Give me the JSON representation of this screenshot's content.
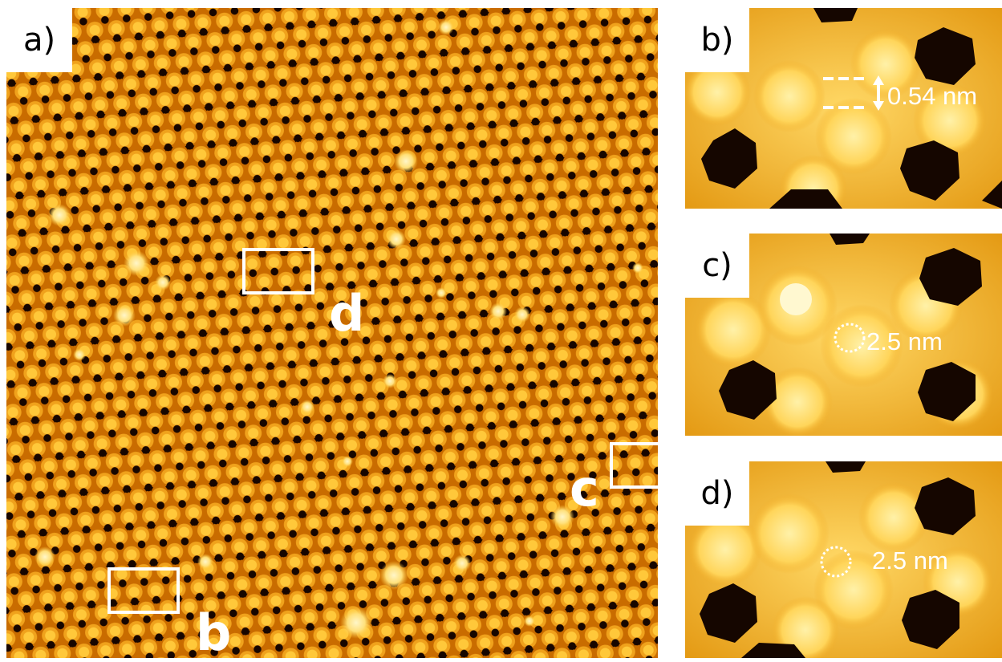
{
  "figure": {
    "panels": [
      {
        "id": "a",
        "label": "a)"
      },
      {
        "id": "b",
        "label": "b)",
        "measurement": "0.54 nm"
      },
      {
        "id": "c",
        "label": "c)",
        "measurement": "2.5 nm"
      },
      {
        "id": "d",
        "label": "d)",
        "measurement": "2.5 nm"
      }
    ],
    "inset_markers": {
      "b": "b",
      "c": "c",
      "d": "d"
    },
    "colors": {
      "background": "#c96c00",
      "bright": "#ffd24a",
      "highlight": "#fff3b0",
      "pore": "#160600",
      "annotation": "#ffffff"
    }
  }
}
